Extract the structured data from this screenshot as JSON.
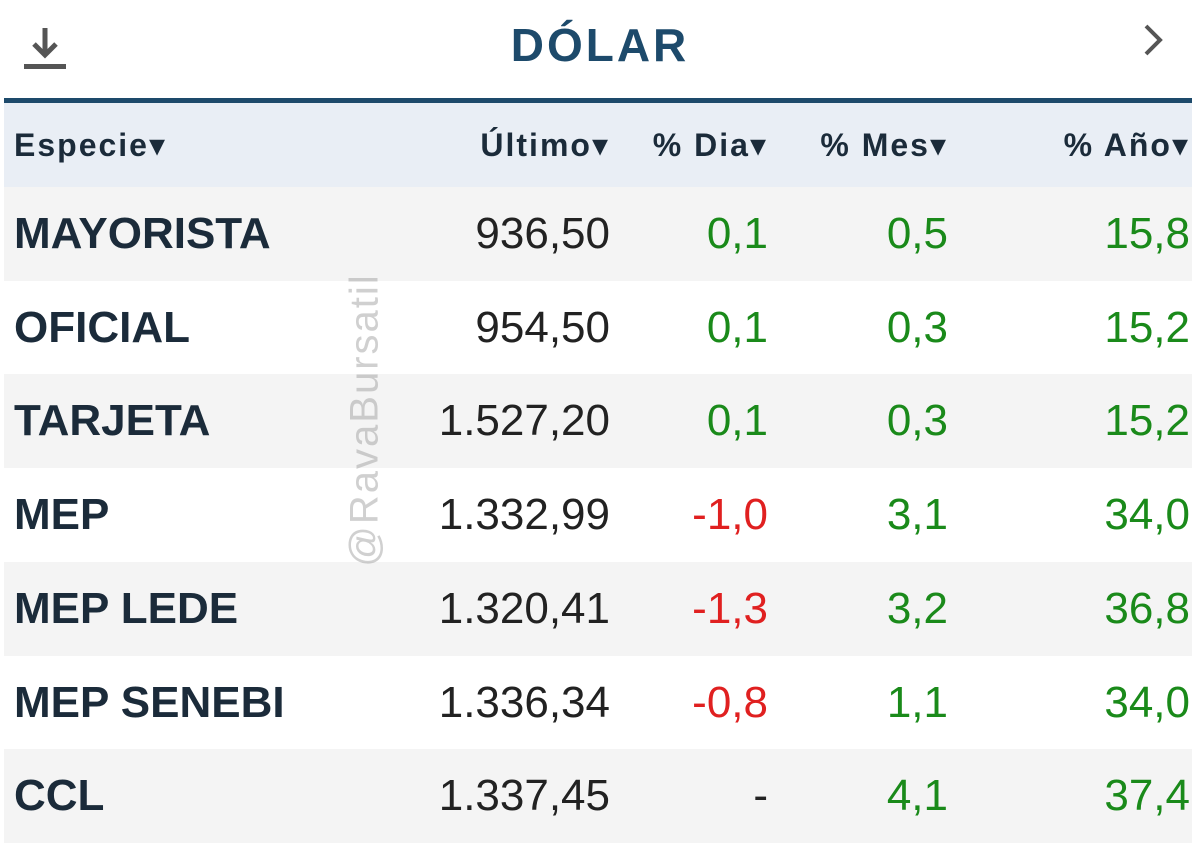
{
  "header": {
    "title": "DÓLAR"
  },
  "table": {
    "columns": [
      "Especie▾",
      "Último▾",
      "% Dia▾",
      "% Mes▾",
      "% Año▾"
    ],
    "rows": [
      [
        "MAYORISTA",
        "936,50",
        "0,1",
        "0,5",
        "15,8"
      ],
      [
        "OFICIAL",
        "954,50",
        "0,1",
        "0,3",
        "15,2"
      ],
      [
        "TARJETA",
        "1.527,20",
        "0,1",
        "0,3",
        "15,2"
      ],
      [
        "MEP",
        "1.332,99",
        "-1,0",
        "3,1",
        "34,0"
      ],
      [
        "MEP LEDE",
        "1.320,41",
        "-1,3",
        "3,2",
        "36,8"
      ],
      [
        "MEP SENEBI",
        "1.336,34",
        "-0,8",
        "1,1",
        "34,0"
      ],
      [
        "CCL",
        "1.337,45",
        "-",
        "4,1",
        "37,4"
      ]
    ]
  },
  "watermark": "@RavaBursatil"
}
